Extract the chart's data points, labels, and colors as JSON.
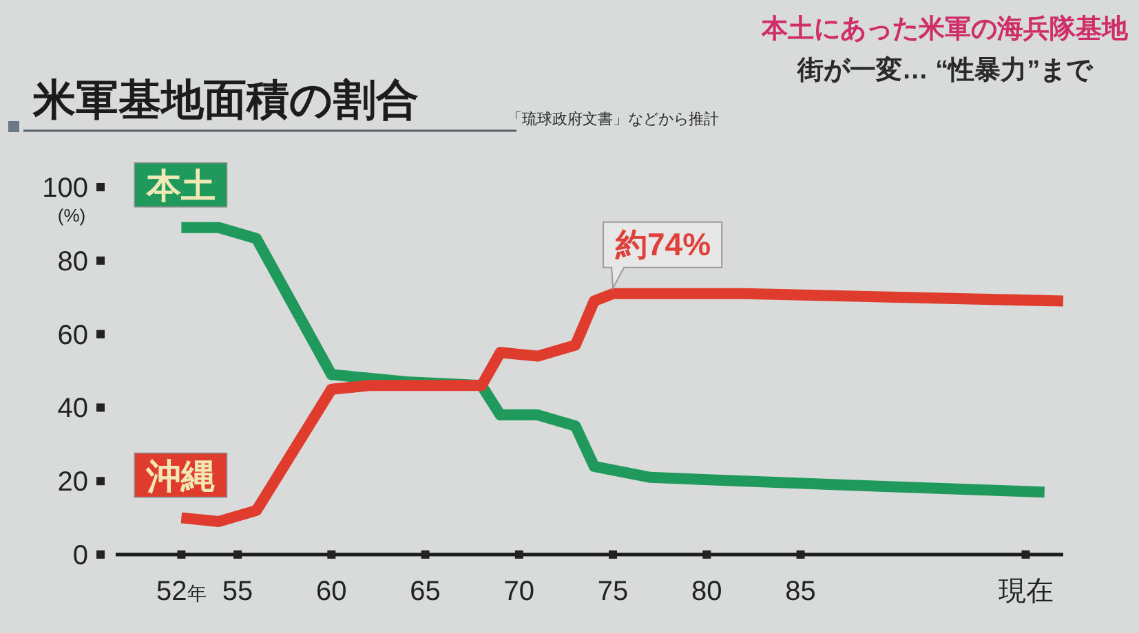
{
  "chart_data": {
    "type": "line",
    "title": "米軍基地面積の割合",
    "ylabel": "(%)",
    "annotations": [
      "「琉球政府文書」などから推計",
      "本土にあった米軍の海兵隊基地",
      "街が一変… “性暴力”まで",
      {
        "text": "約74%",
        "x": 75,
        "y": 71
      }
    ],
    "xlim": [
      48.5,
      99
    ],
    "xticks": [
      {
        "value": 52,
        "label": "52年"
      },
      55,
      60,
      65,
      70,
      75,
      80,
      85,
      {
        "value": 97,
        "label": "現在"
      }
    ],
    "ylim": [
      0,
      100
    ],
    "yticks": [
      0,
      20,
      40,
      60,
      80,
      100
    ],
    "series": [
      {
        "name": "本土",
        "color": "#1f9a5c",
        "x": [
          52,
          54,
          56,
          60,
          64,
          68,
          69,
          71,
          73,
          74,
          77,
          87,
          98
        ],
        "values": [
          89,
          89,
          86,
          49,
          47,
          46,
          38,
          38,
          35,
          24,
          21,
          19,
          17
        ]
      },
      {
        "name": "沖縄",
        "color": "#e03c2e",
        "x": [
          52,
          54,
          56,
          60,
          62,
          68,
          69,
          71,
          73,
          74,
          75,
          82,
          99
        ],
        "values": [
          10,
          9,
          12,
          45,
          46,
          46,
          55,
          54,
          57,
          69,
          71,
          71,
          69
        ]
      }
    ]
  }
}
